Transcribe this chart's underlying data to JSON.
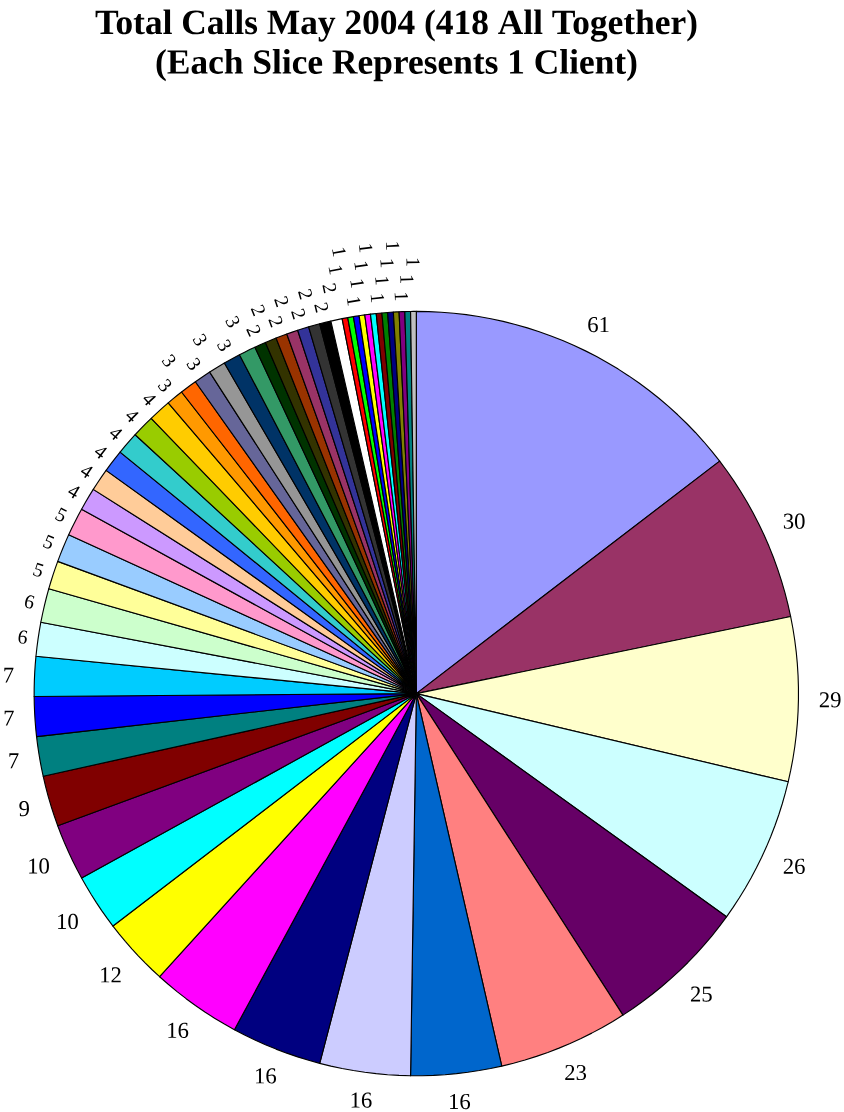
{
  "chart_data": {
    "type": "pie",
    "title": "Total Calls  May 2004 (418 All Together)",
    "subtitle": "(Each Slice Represents 1 Client)",
    "data_labels": true,
    "categories": [
      null,
      null,
      null,
      null,
      null,
      null,
      null,
      null,
      null,
      null,
      null,
      null,
      null,
      null,
      null,
      null,
      null,
      null,
      null,
      null,
      null,
      null,
      null,
      null,
      null,
      null,
      null,
      null,
      null,
      null,
      null,
      null,
      null,
      null,
      null,
      null,
      null,
      null,
      null,
      null,
      null,
      null,
      null,
      null,
      null,
      null,
      null,
      null,
      null,
      null,
      null,
      null,
      null,
      null,
      null
    ],
    "values": [
      61,
      30,
      29,
      26,
      25,
      23,
      16,
      16,
      16,
      16,
      12,
      10,
      10,
      9,
      7,
      7,
      7,
      6,
      6,
      5,
      5,
      5,
      4,
      4,
      4,
      4,
      4,
      4,
      3,
      3,
      3,
      3,
      3,
      3,
      2,
      2,
      2,
      2,
      2,
      2,
      2,
      2,
      1,
      1,
      1,
      1,
      1,
      1,
      1,
      1,
      1,
      1,
      1,
      1,
      1
    ],
    "colors": [
      "#9999ff",
      "#993366",
      "#ffffcc",
      "#ccffff",
      "#660066",
      "#ff8080",
      "#0066cc",
      "#ccccff",
      "#000080",
      "#ff00ff",
      "#ffff00",
      "#00ffff",
      "#800080",
      "#800000",
      "#008080",
      "#0000ff",
      "#00ccff",
      "#ccffff",
      "#ccffcc",
      "#ffff99",
      "#99ccff",
      "#ff99cc",
      "#cc99ff",
      "#ffcc99",
      "#3366ff",
      "#33cccc",
      "#99cc00",
      "#ffcc00",
      "#ff9900",
      "#ff6600",
      "#666699",
      "#969696",
      "#003366",
      "#339966",
      "#003300",
      "#333300",
      "#993300",
      "#993366",
      "#333399",
      "#333333",
      "#000000",
      "#ffffff",
      "#ff0000",
      "#00ff00",
      "#0000ff",
      "#ffff00",
      "#ff00ff",
      "#00ffff",
      "#800000",
      "#008000",
      "#000080",
      "#808000",
      "#800080",
      "#008080",
      "#c0c0c0"
    ]
  }
}
